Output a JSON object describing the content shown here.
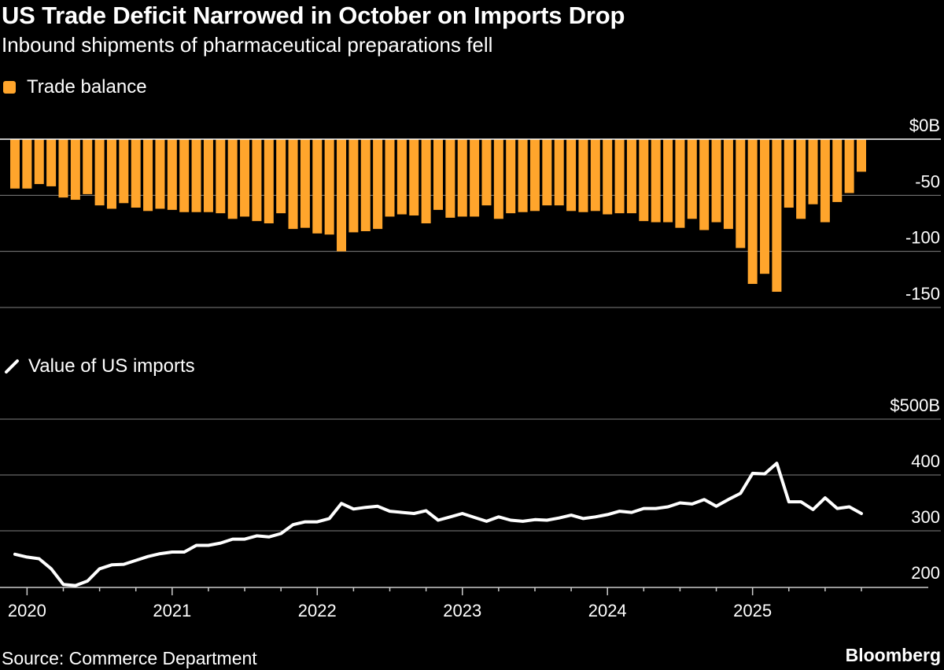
{
  "title": "US Trade Deficit Narrowed in October on Imports Drop",
  "subtitle": "Inbound shipments of pharmaceutical preparations fell",
  "source": "Source: Commerce Department",
  "brand": "Bloomberg",
  "colors": {
    "bar": "#FFA52C",
    "line": "#FFFFFF",
    "background": "#000000",
    "grid": "#808080"
  },
  "chart_data": [
    {
      "type": "bar",
      "legend": "Trade balance",
      "unit": "$B",
      "ylim": [
        -150,
        0
      ],
      "yticks": [
        0,
        -50,
        -100,
        -150
      ],
      "ytick_labels": [
        "$0B",
        "-50",
        "-100",
        "-150"
      ],
      "grid": true,
      "x": [
        "2019-12",
        "2020-01",
        "2020-02",
        "2020-03",
        "2020-04",
        "2020-05",
        "2020-06",
        "2020-07",
        "2020-08",
        "2020-09",
        "2020-10",
        "2020-11",
        "2020-12",
        "2021-01",
        "2021-02",
        "2021-03",
        "2021-04",
        "2021-05",
        "2021-06",
        "2021-07",
        "2021-08",
        "2021-09",
        "2021-10",
        "2021-11",
        "2021-12",
        "2022-01",
        "2022-02",
        "2022-03",
        "2022-04",
        "2022-05",
        "2022-06",
        "2022-07",
        "2022-08",
        "2022-09",
        "2022-10",
        "2022-11",
        "2022-12",
        "2023-01",
        "2023-02",
        "2023-03",
        "2023-04",
        "2023-05",
        "2023-06",
        "2023-07",
        "2023-08",
        "2023-09",
        "2023-10",
        "2023-11",
        "2023-12",
        "2024-01",
        "2024-02",
        "2024-03",
        "2024-04",
        "2024-05",
        "2024-06",
        "2024-07",
        "2024-08",
        "2024-09",
        "2024-10",
        "2024-11",
        "2024-12",
        "2025-01",
        "2025-02",
        "2025-03",
        "2025-04",
        "2025-05",
        "2025-06",
        "2025-07",
        "2025-08",
        "2025-09",
        "2025-10"
      ],
      "values": [
        -44,
        -44,
        -40,
        -42,
        -52,
        -54,
        -49,
        -59,
        -62,
        -57,
        -61,
        -64,
        -62,
        -63,
        -65,
        -65,
        -65,
        -66,
        -71,
        -69,
        -73,
        -75,
        -66,
        -80,
        -79,
        -84,
        -85,
        -100,
        -83,
        -82,
        -80,
        -69,
        -67,
        -68,
        -75,
        -63,
        -70,
        -69,
        -69,
        -59,
        -71,
        -66,
        -65,
        -64,
        -59,
        -59,
        -64,
        -65,
        -64,
        -67,
        -66,
        -66,
        -73,
        -74,
        -74,
        -79,
        -71,
        -81,
        -74,
        -80,
        -97,
        -129,
        -120,
        -136,
        -61,
        -71,
        -58,
        -74,
        -56,
        -48,
        -29
      ]
    },
    {
      "type": "line",
      "legend": "Value of US imports",
      "unit": "$B",
      "ylim": [
        200,
        500
      ],
      "yticks": [
        500,
        400,
        300,
        200
      ],
      "ytick_labels": [
        "$500B",
        "400",
        "300",
        "200"
      ],
      "grid": true,
      "xtick_labels": [
        "2020",
        "2021",
        "2022",
        "2023",
        "2024",
        "2025"
      ],
      "values": [
        258,
        253,
        250,
        232,
        204,
        202,
        210,
        232,
        239,
        240,
        247,
        254,
        259,
        262,
        262,
        274,
        274,
        278,
        285,
        285,
        291,
        289,
        295,
        311,
        316,
        316,
        322,
        349,
        339,
        342,
        344,
        335,
        333,
        331,
        336,
        319,
        325,
        331,
        324,
        317,
        325,
        319,
        317,
        320,
        319,
        323,
        328,
        322,
        325,
        329,
        335,
        333,
        340,
        340,
        343,
        350,
        348,
        356,
        344,
        356,
        367,
        403,
        402,
        421,
        352,
        352,
        338,
        359,
        340,
        343,
        331
      ]
    }
  ]
}
